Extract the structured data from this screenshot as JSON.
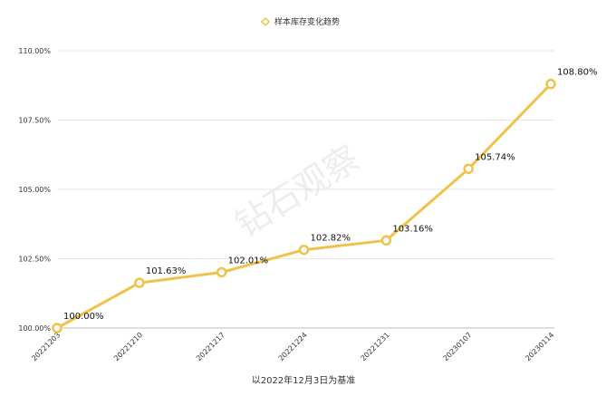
{
  "chart_data": {
    "type": "line",
    "legend": {
      "label": "样本库存变化趋势",
      "position": "top-center"
    },
    "xlabel": "以2022年12月3日为基准",
    "ylabel": "",
    "watermark": "钻石观察",
    "categories": [
      "20221203",
      "20221210",
      "20221217",
      "20221224",
      "20221231",
      "20230107",
      "20230114"
    ],
    "series": [
      {
        "name": "样本库存变化趋势",
        "values": [
          100.0,
          101.63,
          102.01,
          102.82,
          103.16,
          105.74,
          108.8
        ],
        "labels": [
          "100.00%",
          "101.63%",
          "102.01%",
          "102.82%",
          "103.16%",
          "105.74%",
          "108.80%"
        ],
        "color": "#F0C24B"
      }
    ],
    "ylim": [
      100,
      110
    ],
    "yticks": [
      100,
      102.5,
      105,
      107.5,
      110
    ],
    "ytick_labels": [
      "100.00%",
      "102.50%",
      "105.00%",
      "107.50%",
      "110.00%"
    ],
    "grid": true
  }
}
